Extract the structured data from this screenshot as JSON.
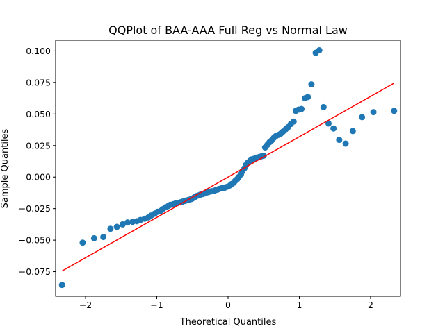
{
  "chart_data": {
    "type": "scatter",
    "title": "QQPlot of BAA-AAA Full Reg vs Normal Law",
    "xlabel": "Theoretical Quantiles",
    "ylabel": "Sample Quantiles",
    "xlim": [
      -2.42,
      2.42
    ],
    "ylim": [
      -0.0945,
      0.1085
    ],
    "xticks": [
      -2,
      -1,
      0,
      1,
      2
    ],
    "xtick_labels": [
      "−2",
      "−1",
      "0",
      "1",
      "2"
    ],
    "yticks": [
      -0.075,
      -0.05,
      -0.025,
      0.0,
      0.025,
      0.05,
      0.075,
      0.1
    ],
    "ytick_labels": [
      "−0.075",
      "−0.050",
      "−0.025",
      "0.000",
      "0.025",
      "0.050",
      "0.075",
      "0.100"
    ],
    "grid": false,
    "point_color": "#1f77b4",
    "line_color": "#ff0000",
    "reference_line": {
      "x": [
        -2.33,
        2.33
      ],
      "y": [
        -0.0745,
        0.0745
      ]
    },
    "points": {
      "x": [
        -2.33,
        -2.04,
        -1.88,
        -1.75,
        -1.65,
        -1.56,
        -1.48,
        -1.41,
        -1.34,
        -1.28,
        -1.23,
        -1.17,
        -1.12,
        -1.08,
        -1.03,
        -0.99,
        -0.95,
        -0.92,
        -0.88,
        -0.84,
        -0.81,
        -0.77,
        -0.74,
        -0.71,
        -0.67,
        -0.64,
        -0.61,
        -0.58,
        -0.55,
        -0.52,
        -0.5,
        -0.47,
        -0.44,
        -0.41,
        -0.39,
        -0.36,
        -0.33,
        -0.31,
        -0.28,
        -0.25,
        -0.23,
        -0.2,
        -0.18,
        -0.15,
        -0.13,
        -0.1,
        -0.08,
        -0.05,
        -0.03,
        0.0,
        0.03,
        0.05,
        0.08,
        0.1,
        0.13,
        0.15,
        0.18,
        0.2,
        0.23,
        0.25,
        0.28,
        0.31,
        0.33,
        0.36,
        0.39,
        0.41,
        0.44,
        0.47,
        0.5,
        0.52,
        0.55,
        0.58,
        0.61,
        0.64,
        0.67,
        0.71,
        0.74,
        0.77,
        0.81,
        0.84,
        0.88,
        0.92,
        0.95,
        0.99,
        1.03,
        1.08,
        1.12,
        1.17,
        1.23,
        1.28,
        1.34,
        1.41,
        1.48,
        1.56,
        1.65,
        1.75,
        1.88,
        2.04,
        2.33
      ],
      "y": [
        -0.0855,
        -0.052,
        -0.0485,
        -0.0475,
        -0.041,
        -0.0395,
        -0.0375,
        -0.036,
        -0.0355,
        -0.035,
        -0.034,
        -0.033,
        -0.032,
        -0.0305,
        -0.029,
        -0.0275,
        -0.027,
        -0.0255,
        -0.024,
        -0.023,
        -0.022,
        -0.0215,
        -0.021,
        -0.0205,
        -0.02,
        -0.0195,
        -0.019,
        -0.0185,
        -0.018,
        -0.0175,
        -0.017,
        -0.016,
        -0.015,
        -0.0145,
        -0.014,
        -0.0135,
        -0.013,
        -0.0125,
        -0.012,
        -0.0115,
        -0.0112,
        -0.011,
        -0.0105,
        -0.01,
        -0.0095,
        -0.009,
        -0.0088,
        -0.0085,
        -0.008,
        -0.0075,
        -0.0065,
        -0.0055,
        -0.0045,
        -0.003,
        -0.0015,
        0.0,
        0.002,
        0.0045,
        0.007,
        0.0095,
        0.0115,
        0.013,
        0.014,
        0.0145,
        0.015,
        0.0155,
        0.016,
        0.0165,
        0.017,
        0.0235,
        0.0255,
        0.0275,
        0.029,
        0.031,
        0.0325,
        0.0335,
        0.0345,
        0.036,
        0.038,
        0.0395,
        0.042,
        0.044,
        0.0525,
        0.0535,
        0.054,
        0.0625,
        0.0635,
        0.0735,
        0.0985,
        0.1005,
        0.0555,
        0.0425,
        0.0385,
        0.0295,
        0.0265,
        0.0365,
        0.0475,
        0.0515,
        0.0525
      ]
    }
  }
}
